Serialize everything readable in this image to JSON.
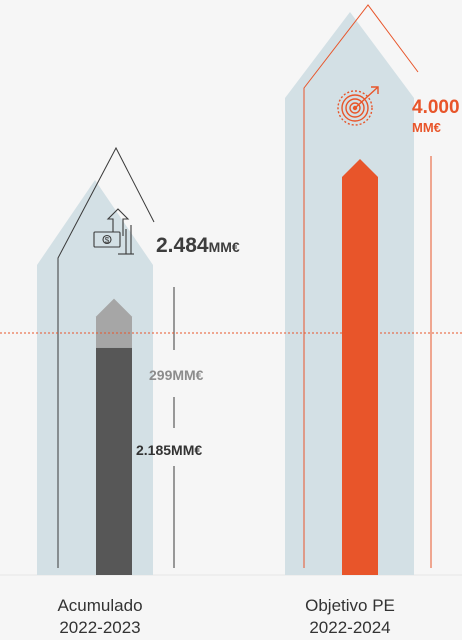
{
  "chart_data": {
    "type": "bar",
    "categories": [
      {
        "line1": "Acumulado",
        "line2": "2022-2023"
      },
      {
        "line1": "Objetivo PE",
        "line2": "2022-2024"
      }
    ],
    "series": [
      {
        "name": "",
        "values": [
          2185,
          null
        ]
      },
      {
        "name": "",
        "values": [
          299,
          null
        ]
      },
      {
        "name": "",
        "values": [
          null,
          4000
        ]
      }
    ],
    "totals": [
      2484,
      4000
    ],
    "labels": {
      "total_1_value": "2.484",
      "total_1_unit": "MM€",
      "seg_top": "299MM€",
      "seg_bottom": "2.185MM€",
      "target_value": "4.000",
      "target_unit": "MM€"
    },
    "reference_line": {
      "style": "dotted",
      "color": "#e8552a"
    },
    "colors": {
      "house": "#d3e0e5",
      "bottom_segment": "#575757",
      "top_segment": "#a6a6a6",
      "target_bar": "#e8552a",
      "outline_dark": "#3a3a3a",
      "outline_orange": "#e8552a"
    },
    "icons": [
      "money-growth-icon",
      "target-icon"
    ]
  }
}
